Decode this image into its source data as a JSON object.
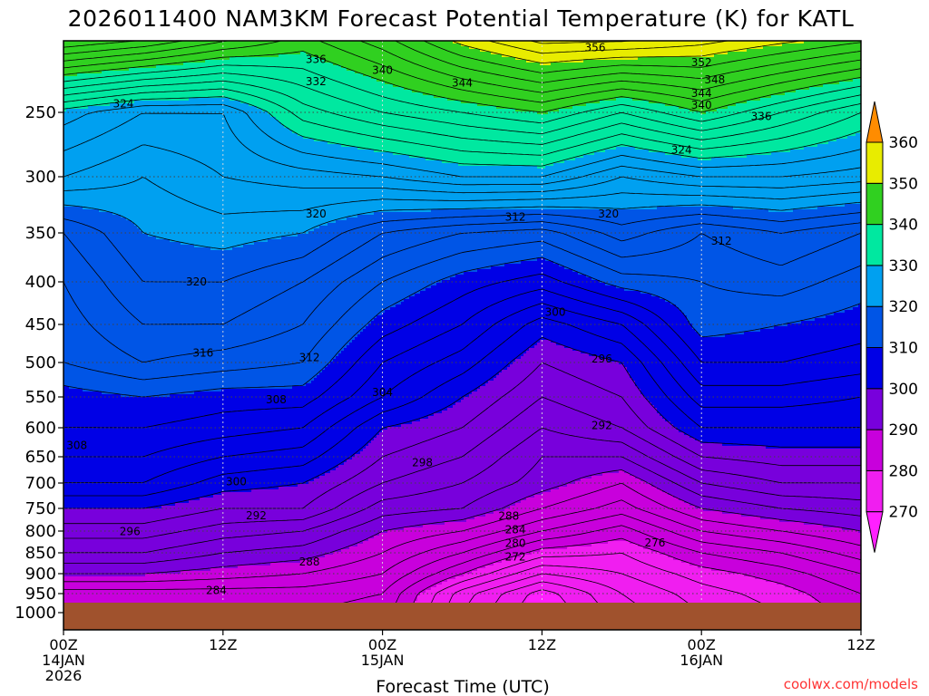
{
  "chart_data": {
    "type": "heatmap",
    "title": "2026011400 NAM3KM Forecast Potential Temperature (K) for KATL",
    "xlabel": "Forecast Time (UTC)",
    "ylabel": "",
    "x_ticks": [
      {
        "hour": 0,
        "line1": "00Z",
        "line2": "14JAN",
        "line3": "2026"
      },
      {
        "hour": 12,
        "line1": "12Z",
        "line2": "",
        "line3": ""
      },
      {
        "hour": 24,
        "line1": "00Z",
        "line2": "15JAN",
        "line3": ""
      },
      {
        "hour": 36,
        "line1": "12Z",
        "line2": "",
        "line3": ""
      },
      {
        "hour": 48,
        "line1": "00Z",
        "line2": "16JAN",
        "line3": ""
      },
      {
        "hour": 60,
        "line1": "12Z",
        "line2": "",
        "line3": ""
      }
    ],
    "xlim": [
      0,
      60
    ],
    "y_ticks": [
      250,
      300,
      350,
      400,
      450,
      500,
      550,
      600,
      650,
      700,
      750,
      800,
      850,
      900,
      950,
      1000
    ],
    "ylim": [
      200,
      1050
    ],
    "ground_pressure": 970,
    "grid": true,
    "colorbar": {
      "labels": [
        270,
        280,
        290,
        300,
        310,
        320,
        330,
        340,
        350,
        360
      ],
      "colors": [
        "#f01ef0",
        "#c800dc",
        "#7800dc",
        "#0000e6",
        "#0055e6",
        "#00a0f0",
        "#00e8a0",
        "#30d020",
        "#e8ec00",
        "#ffa000"
      ],
      "over": "#ff8c00",
      "under": "#ff20ff"
    },
    "iso_levels": [
      270,
      272,
      274,
      276,
      278,
      280,
      282,
      284,
      286,
      288,
      290,
      292,
      294,
      296,
      298,
      300,
      302,
      304,
      306,
      308,
      310,
      312,
      314,
      316,
      318,
      320,
      322,
      324,
      326,
      328,
      330,
      332,
      334,
      336,
      338,
      340,
      342,
      344,
      346,
      348,
      350,
      352,
      354,
      356,
      358,
      360
    ],
    "profiles": [
      {
        "hour": 0,
        "pressure": [
          200,
          250,
          300,
          350,
          400,
          450,
          500,
          550,
          600,
          650,
          700,
          750,
          800,
          850,
          900,
          950,
          1000
        ],
        "theta": [
          352,
          329,
          324,
          316,
          314,
          313,
          312,
          309,
          308,
          306,
          304,
          300,
          297,
          294,
          290,
          285,
          283
        ]
      },
      {
        "hour": 6,
        "pressure": [
          200,
          250,
          300,
          350,
          400,
          450,
          500,
          550,
          600,
          650,
          700,
          750,
          800,
          850,
          900,
          950,
          1000
        ],
        "theta": [
          350,
          326,
          322,
          320,
          318,
          316,
          314,
          310,
          308,
          306,
          304,
          300,
          297,
          294,
          290,
          285,
          283
        ]
      },
      {
        "hour": 12,
        "pressure": [
          200,
          250,
          300,
          350,
          400,
          450,
          500,
          550,
          600,
          650,
          700,
          750,
          800,
          850,
          900,
          950,
          1000
        ],
        "theta": [
          346,
          326,
          324,
          321,
          318,
          316,
          313,
          309,
          307,
          304,
          301,
          298,
          295,
          292,
          289,
          285,
          284
        ]
      },
      {
        "hour": 18,
        "pressure": [
          200,
          250,
          300,
          350,
          400,
          450,
          500,
          550,
          600,
          650,
          700,
          750,
          800,
          850,
          900,
          950,
          1000
        ],
        "theta": [
          342,
          333,
          325,
          320,
          316,
          314,
          312,
          309,
          306,
          303,
          300,
          298,
          294,
          291,
          288,
          285,
          284
        ]
      },
      {
        "hour": 24,
        "pressure": [
          200,
          250,
          300,
          350,
          400,
          450,
          500,
          550,
          600,
          650,
          700,
          750,
          800,
          850,
          900,
          950,
          1000
        ],
        "theta": [
          346,
          336,
          326,
          316,
          312,
          309,
          306,
          304,
          300,
          298,
          296,
          293,
          290,
          288,
          286,
          284,
          283
        ]
      },
      {
        "hour": 30,
        "pressure": [
          200,
          250,
          300,
          350,
          400,
          450,
          500,
          550,
          600,
          650,
          700,
          750,
          800,
          850,
          900,
          950,
          1000
        ],
        "theta": [
          352,
          338,
          328,
          314,
          309,
          306,
          303,
          300,
          298,
          296,
          294,
          292,
          288,
          284,
          280,
          275,
          274
        ]
      },
      {
        "hour": 36,
        "pressure": [
          200,
          250,
          300,
          350,
          400,
          450,
          500,
          550,
          600,
          650,
          700,
          750,
          800,
          850,
          900,
          950,
          1000
        ],
        "theta": [
          356,
          340,
          328,
          313,
          307,
          301,
          298,
          296,
          294,
          292,
          291,
          288,
          284,
          279,
          274,
          269,
          268
        ]
      },
      {
        "hour": 42,
        "pressure": [
          200,
          250,
          300,
          350,
          400,
          450,
          500,
          550,
          600,
          650,
          700,
          750,
          800,
          850,
          900,
          950,
          1000
        ],
        "theta": [
          356,
          336,
          324,
          317,
          311,
          304,
          300,
          298,
          296,
          292,
          288,
          285,
          281,
          278,
          276,
          274,
          273
        ]
      },
      {
        "hour": 48,
        "pressure": [
          200,
          250,
          300,
          350,
          400,
          450,
          500,
          550,
          600,
          650,
          700,
          750,
          800,
          850,
          900,
          950,
          1000
        ],
        "theta": [
          354,
          340,
          326,
          314,
          312,
          311,
          308,
          305,
          302,
          298,
          294,
          290,
          286,
          282,
          279,
          277,
          276
        ]
      },
      {
        "hour": 54,
        "pressure": [
          200,
          250,
          300,
          350,
          400,
          450,
          500,
          550,
          600,
          650,
          700,
          750,
          800,
          850,
          900,
          950,
          1000
        ],
        "theta": [
          352,
          336,
          326,
          316,
          313,
          310,
          308,
          305,
          302,
          299,
          296,
          292,
          288,
          284,
          281,
          279,
          278
        ]
      },
      {
        "hour": 60,
        "pressure": [
          200,
          250,
          300,
          350,
          400,
          450,
          500,
          550,
          600,
          650,
          700,
          750,
          800,
          850,
          900,
          950,
          1000
        ],
        "theta": [
          350,
          332,
          325,
          314,
          311,
          309,
          307,
          304,
          302,
          299,
          296,
          293,
          290,
          287,
          284,
          282,
          281
        ]
      }
    ],
    "contour_labels": [
      {
        "text": "336",
        "hour": 19.0,
        "pressure": 215
      },
      {
        "text": "340",
        "hour": 24.0,
        "pressure": 222
      },
      {
        "text": "332",
        "hour": 19.0,
        "pressure": 229
      },
      {
        "text": "356",
        "hour": 40.0,
        "pressure": 208
      },
      {
        "text": "352",
        "hour": 48.0,
        "pressure": 217
      },
      {
        "text": "348",
        "hour": 49.0,
        "pressure": 228
      },
      {
        "text": "344",
        "hour": 30.0,
        "pressure": 230
      },
      {
        "text": "344",
        "hour": 48.0,
        "pressure": 237
      },
      {
        "text": "340",
        "hour": 48.0,
        "pressure": 245
      },
      {
        "text": "336",
        "hour": 52.5,
        "pressure": 253
      },
      {
        "text": "324",
        "hour": 4.5,
        "pressure": 244
      },
      {
        "text": "324",
        "hour": 46.5,
        "pressure": 278
      },
      {
        "text": "320",
        "hour": 19.0,
        "pressure": 332
      },
      {
        "text": "312",
        "hour": 34.0,
        "pressure": 335
      },
      {
        "text": "320",
        "hour": 41.0,
        "pressure": 332
      },
      {
        "text": "312",
        "hour": 49.5,
        "pressure": 358
      },
      {
        "text": "320",
        "hour": 10.0,
        "pressure": 400
      },
      {
        "text": "316",
        "hour": 10.5,
        "pressure": 487
      },
      {
        "text": "312",
        "hour": 18.5,
        "pressure": 493
      },
      {
        "text": "308",
        "hour": 16.0,
        "pressure": 554
      },
      {
        "text": "304",
        "hour": 24.0,
        "pressure": 543
      },
      {
        "text": "300",
        "hour": 37.0,
        "pressure": 435
      },
      {
        "text": "296",
        "hour": 40.5,
        "pressure": 495
      },
      {
        "text": "308",
        "hour": 1.0,
        "pressure": 630
      },
      {
        "text": "292",
        "hour": 40.5,
        "pressure": 596
      },
      {
        "text": "298",
        "hour": 27.0,
        "pressure": 661
      },
      {
        "text": "300",
        "hour": 13.0,
        "pressure": 697
      },
      {
        "text": "292",
        "hour": 14.5,
        "pressure": 766
      },
      {
        "text": "296",
        "hour": 5.0,
        "pressure": 801
      },
      {
        "text": "288",
        "hour": 33.5,
        "pressure": 767
      },
      {
        "text": "284",
        "hour": 34.0,
        "pressure": 797
      },
      {
        "text": "280",
        "hour": 34.0,
        "pressure": 828
      },
      {
        "text": "276",
        "hour": 44.5,
        "pressure": 827
      },
      {
        "text": "272",
        "hour": 34.0,
        "pressure": 860
      },
      {
        "text": "288",
        "hour": 18.5,
        "pressure": 871
      },
      {
        "text": "284",
        "hour": 11.5,
        "pressure": 942
      }
    ]
  },
  "watermark": "coolwx.com/models"
}
